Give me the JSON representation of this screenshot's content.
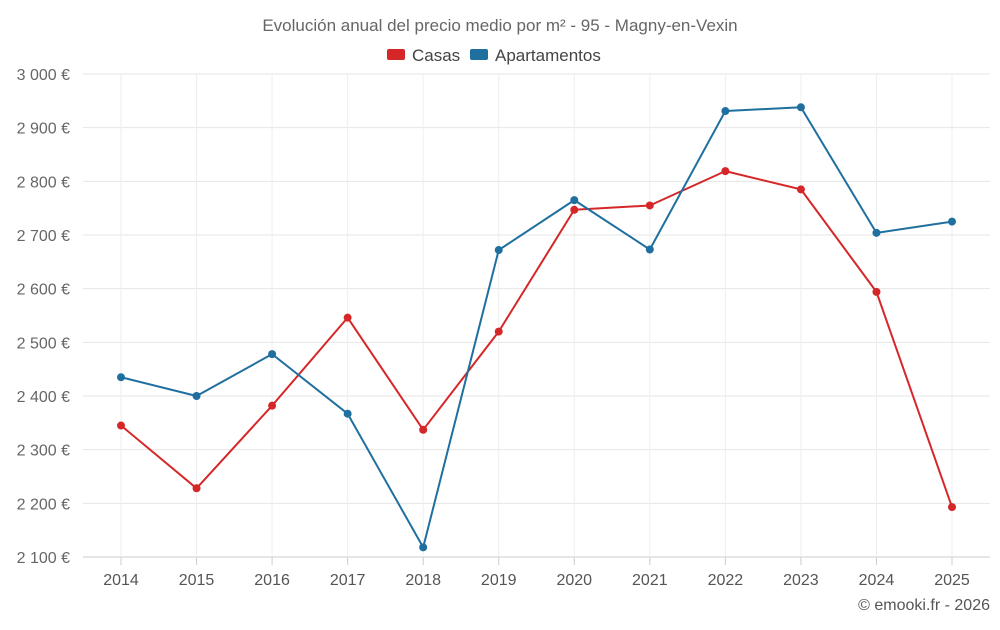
{
  "chart_data": {
    "type": "line",
    "title": "Evolución anual del precio medio por m² - 95 - Magny-en-Vexin",
    "categories": [
      "2014",
      "2015",
      "2016",
      "2017",
      "2018",
      "2019",
      "2020",
      "2021",
      "2022",
      "2023",
      "2024",
      "2025"
    ],
    "series": [
      {
        "name": "Casas",
        "color": "#d62728",
        "values": [
          2345,
          2228,
          2382,
          2546,
          2337,
          2520,
          2747,
          2755,
          2819,
          2785,
          2594,
          2193
        ]
      },
      {
        "name": "Apartamentos",
        "color": "#1f6f9f",
        "values": [
          2435,
          2400,
          2478,
          2367,
          2118,
          2672,
          2765,
          2673,
          2931,
          2938,
          2704,
          2725
        ]
      }
    ],
    "ylim": [
      2100,
      3000
    ],
    "yticks": [
      2100,
      2200,
      2300,
      2400,
      2500,
      2600,
      2700,
      2800,
      2900,
      3000
    ],
    "ytick_labels": [
      "2 100 €",
      "2 200 €",
      "2 300 €",
      "2 400 €",
      "2 500 €",
      "2 600 €",
      "2 700 €",
      "2 800 €",
      "2 900 €",
      "3 000 €"
    ],
    "xlabel": "",
    "ylabel": "",
    "grid": true,
    "legend": "top-center",
    "credit": "© emooki.fr - 2026"
  }
}
